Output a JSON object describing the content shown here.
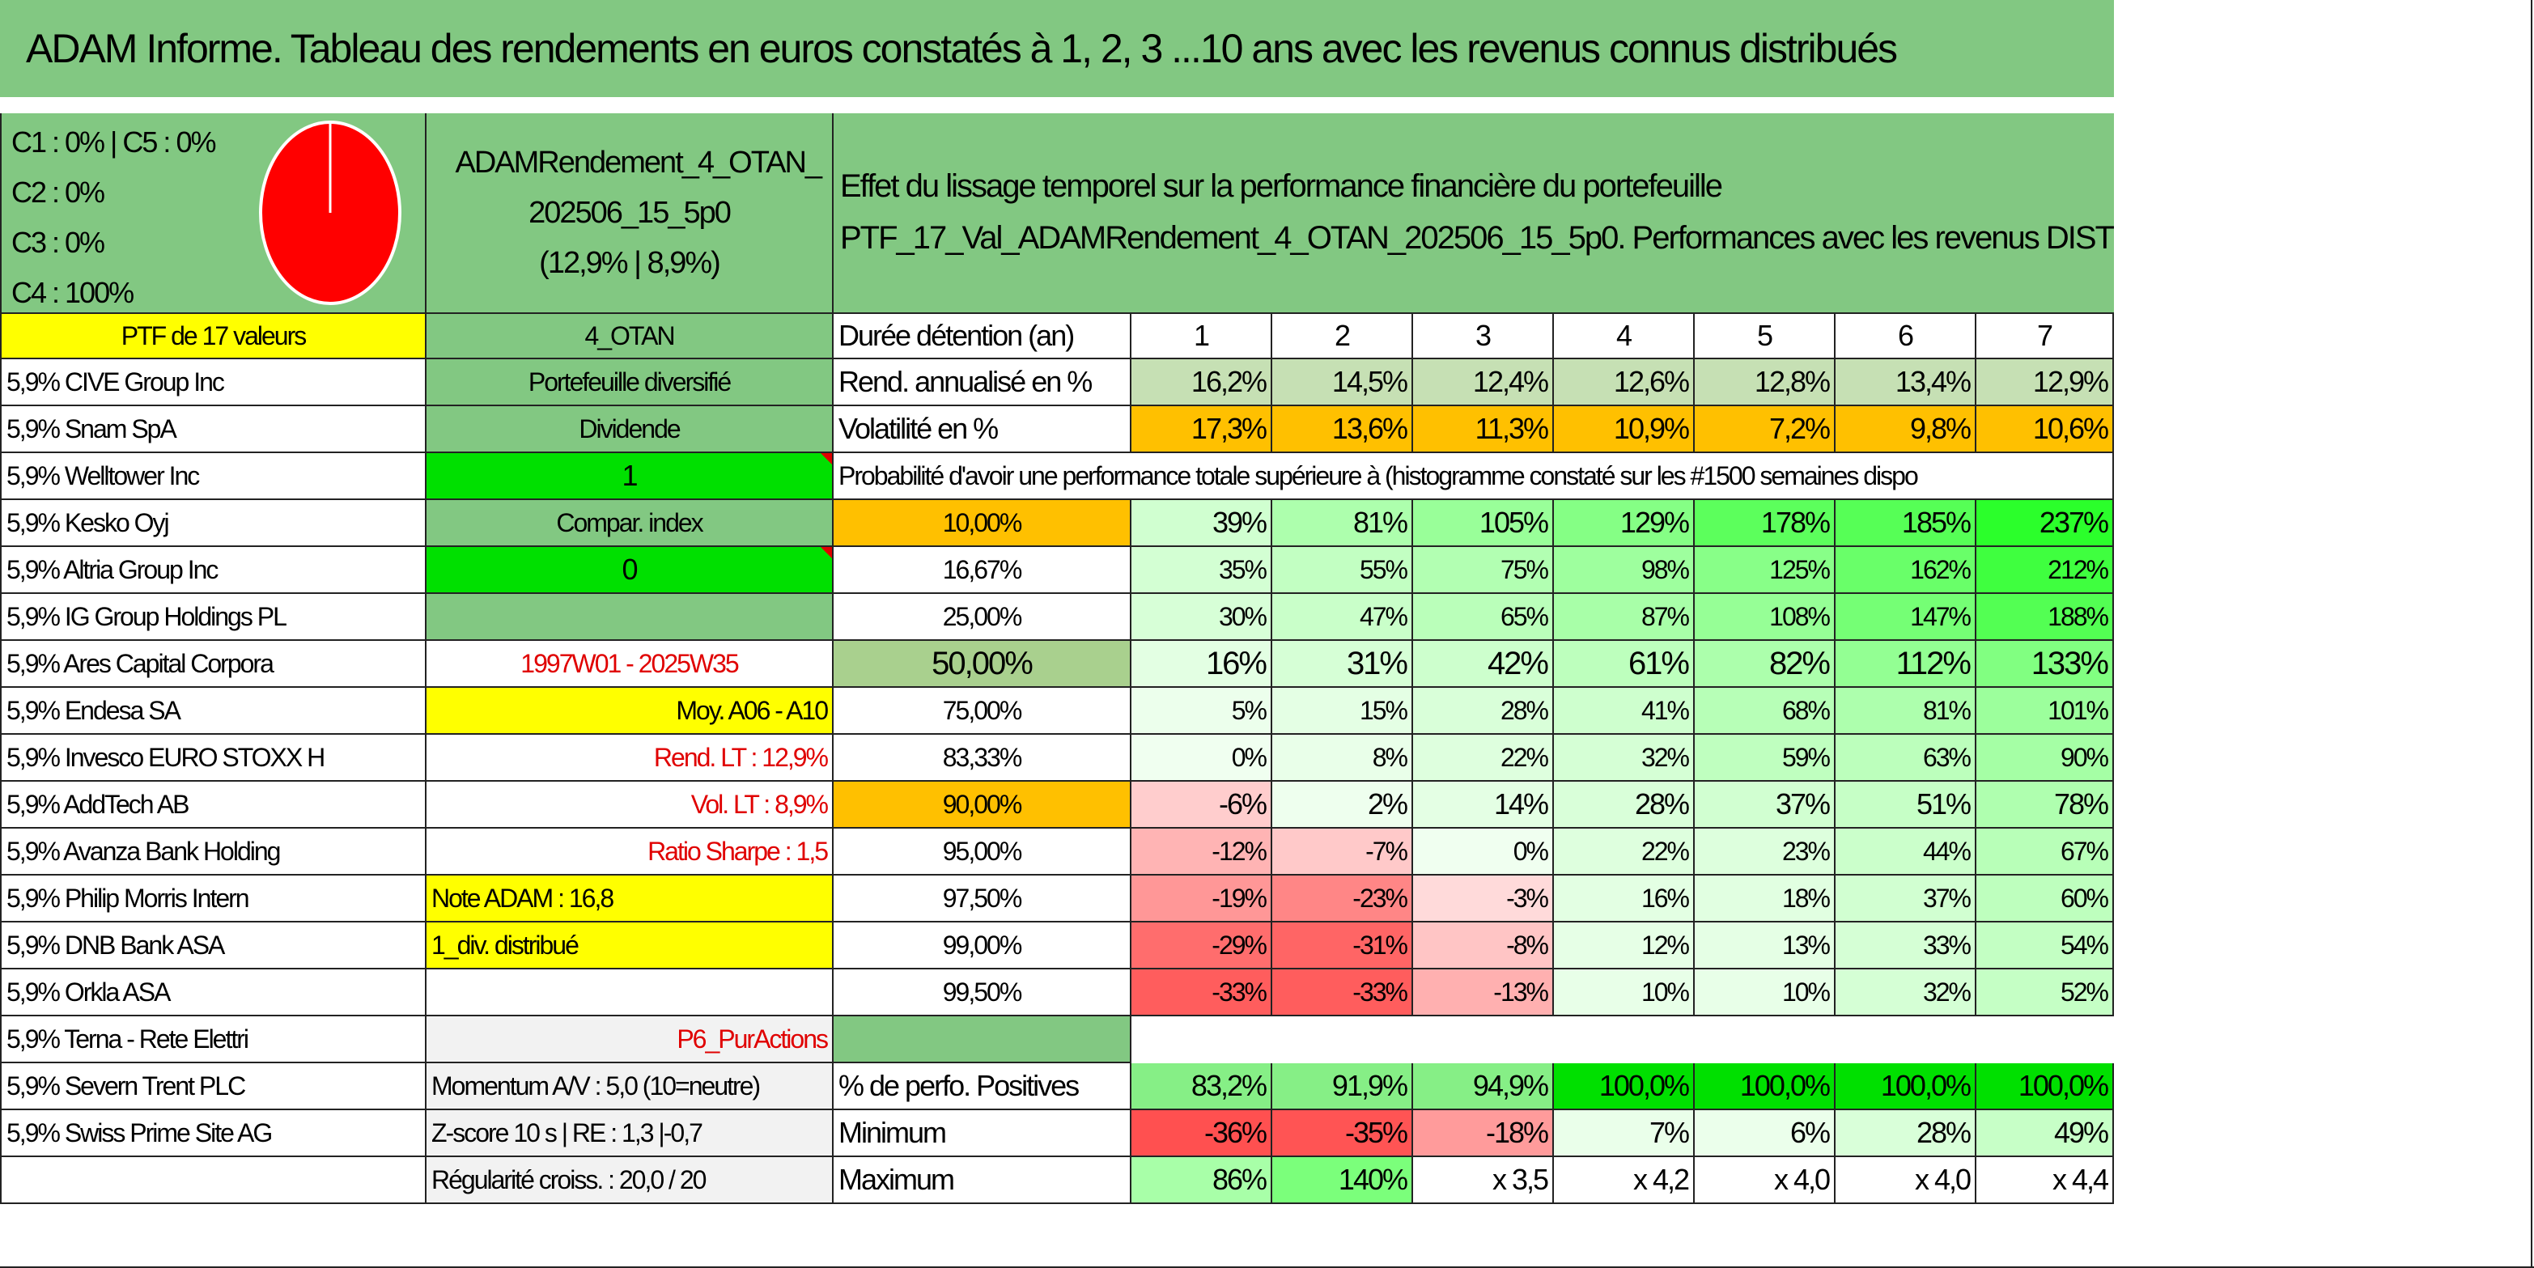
{
  "title": "ADAM Informe. Tableau des rendements en euros constatés à 1, 2, 3 ...10 ans avec les revenus connus distribués",
  "allocation": [
    "C1 : 0% | C5 : 0%",
    "C2 : 0%",
    "C3 : 0%",
    "C4 : 100%"
  ],
  "pie": {
    "slices": [
      {
        "label": "C4",
        "value": 100,
        "color": "#ff0000"
      }
    ]
  },
  "portfolio_name": "ADAMRendement_4_OTAN_ 202506_15_5p0",
  "portfolio_stats": "(12,9% | 8,9%)",
  "header_text": "Effet du lissage temporel sur la performance financière du portefeuille PTF_17_Val_ADAMRendement_4_OTAN_202506_15_5p0. Performances avec les revenus DIST",
  "ptf_count": "PTF de 17 valeurs",
  "profile_code": "4_OTAN",
  "holdings": [
    "5,9% CIVE Group Inc",
    "5,9% Snam SpA",
    "5,9% Welltower Inc",
    "5,9% Kesko Oyj",
    "5,9% Altria Group Inc",
    "5,9% IG Group Holdings PL",
    "5,9% Ares Capital Corpora",
    "5,9% Endesa SA",
    "5,9% Invesco EURO STOXX H",
    "5,9% AddTech AB",
    "5,9% Avanza Bank Holding",
    "5,9% Philip Morris Intern",
    "5,9% DNB Bank ASA",
    "5,9% Orkla ASA",
    "5,9% Terna - Rete Elettri",
    "5,9% Severn Trent PLC",
    "5,9% Swiss Prime Site AG"
  ],
  "info": {
    "diversified": "Portefeuille diversifié",
    "dividend": "Dividende",
    "one": "1",
    "compar": "Compar. index",
    "zero": "0",
    "period": "1997W01 - 2025W35",
    "moy": "Moy. A06 - A10",
    "rend": "Rend. LT : 12,9%",
    "vol": "Vol. LT : 8,9%",
    "sharpe": "Ratio Sharpe : 1,5",
    "note": "Note ADAM : 16,8",
    "div": "1_div. distribué",
    "p6": "P6_PurActions",
    "momentum": "Momentum A/V : 5,0 (10=neutre)",
    "zscore": "Z-score 10 s | RE : 1,3 |-0,7",
    "regularity": "Régularité croiss. : 20,0 / 20"
  },
  "table": {
    "duration_label": "Durée détention (an)",
    "years": [
      "1",
      "2",
      "3",
      "4",
      "5",
      "6",
      "7"
    ],
    "rend_label": "Rend. annualisé en %",
    "rend": [
      "16,2%",
      "14,5%",
      "12,4%",
      "12,6%",
      "12,8%",
      "13,4%",
      "12,9%"
    ],
    "vol_label": "Volatilité en %",
    "vol": [
      "17,3%",
      "13,6%",
      "11,3%",
      "10,9%",
      "7,2%",
      "9,8%",
      "10,6%"
    ],
    "prob_label": "Probabilité d'avoir une performance totale supérieure à (histogramme constaté sur les #1500 semaines dispo",
    "prob_rows": [
      {
        "p": "10,00%",
        "v": [
          "39%",
          "81%",
          "105%",
          "129%",
          "178%",
          "185%",
          "237%"
        ]
      },
      {
        "p": "16,67%",
        "v": [
          "35%",
          "55%",
          "75%",
          "98%",
          "125%",
          "162%",
          "212%"
        ]
      },
      {
        "p": "25,00%",
        "v": [
          "30%",
          "47%",
          "65%",
          "87%",
          "108%",
          "147%",
          "188%"
        ]
      },
      {
        "p": "50,00%",
        "v": [
          "16%",
          "31%",
          "42%",
          "61%",
          "82%",
          "112%",
          "133%"
        ]
      },
      {
        "p": "75,00%",
        "v": [
          "5%",
          "15%",
          "28%",
          "41%",
          "68%",
          "81%",
          "101%"
        ]
      },
      {
        "p": "83,33%",
        "v": [
          "0%",
          "8%",
          "22%",
          "32%",
          "59%",
          "63%",
          "90%"
        ]
      },
      {
        "p": "90,00%",
        "v": [
          "-6%",
          "2%",
          "14%",
          "28%",
          "37%",
          "51%",
          "78%"
        ]
      },
      {
        "p": "95,00%",
        "v": [
          "-12%",
          "-7%",
          "0%",
          "22%",
          "23%",
          "44%",
          "67%"
        ]
      },
      {
        "p": "97,50%",
        "v": [
          "-19%",
          "-23%",
          "-3%",
          "16%",
          "18%",
          "37%",
          "60%"
        ]
      },
      {
        "p": "99,00%",
        "v": [
          "-29%",
          "-31%",
          "-8%",
          "12%",
          "13%",
          "33%",
          "54%"
        ]
      },
      {
        "p": "99,50%",
        "v": [
          "-33%",
          "-33%",
          "-13%",
          "10%",
          "10%",
          "32%",
          "52%"
        ]
      }
    ],
    "pos_label": "% de perfo. Positives",
    "pos": [
      "83,2%",
      "91,9%",
      "94,9%",
      "100,0%",
      "100,0%",
      "100,0%",
      "100,0%"
    ],
    "min_label": "Minimum",
    "min": [
      "-36%",
      "-35%",
      "-18%",
      "7%",
      "6%",
      "28%",
      "49%"
    ],
    "max_label": "Maximum",
    "max": [
      "86%",
      "140%",
      "x 3,5",
      "x 4,2",
      "x 4,0",
      "x 4,0",
      "x 4,4"
    ]
  },
  "colors": {
    "header_green": "#82c882",
    "yellow": "#ffff00",
    "bright_green": "#00e000",
    "orange": "#ffc000",
    "light_gray": "#f2f2f2",
    "red_text": "#e00000"
  }
}
